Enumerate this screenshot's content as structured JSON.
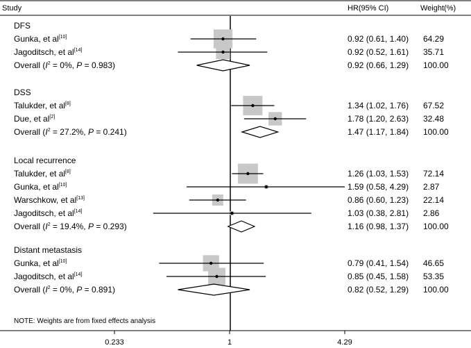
{
  "chart_data": {
    "type": "forest",
    "scale": "log",
    "null_value": 1,
    "columns": {
      "study": "Study",
      "hr": "HR(95% CI)",
      "weight": "Weight(%)"
    },
    "x_ticks": [
      {
        "value": 0.233,
        "label": "0.233"
      },
      {
        "value": 1,
        "label": "1"
      },
      {
        "value": 4.29,
        "label": "4.29"
      }
    ],
    "note": "NOTE: Weights are from fixed effects analysis",
    "groups": [
      {
        "name": "DFS",
        "studies": [
          {
            "author": "Gunka, et al",
            "ref": "[10]",
            "hr": 0.92,
            "lo": 0.61,
            "hi": 1.4,
            "hr_text": "0.92 (0.61, 1.40)",
            "weight": "64.29",
            "w": 64.29
          },
          {
            "author": "Jagoditsch, et al",
            "ref": "[14]",
            "hr": 0.92,
            "lo": 0.52,
            "hi": 1.61,
            "hr_text": "0.92 (0.52, 1.61)",
            "weight": "35.71",
            "w": 35.71
          }
        ],
        "overall": {
          "label": "Overall (",
          "i2_sym": "I",
          "i2_sup": "2",
          "i2_val": " = 0%, ",
          "p_sym": "P",
          "p_val": " = 0.983)",
          "hr": 0.92,
          "lo": 0.66,
          "hi": 1.29,
          "hr_text": "0.92 (0.66, 1.29)",
          "weight": "100.00"
        }
      },
      {
        "name": "DSS",
        "studies": [
          {
            "author": "Talukder, et al",
            "ref": "[8]",
            "hr": 1.34,
            "lo": 1.02,
            "hi": 1.76,
            "hr_text": "1.34 (1.02, 1.76)",
            "weight": "67.52",
            "w": 67.52
          },
          {
            "author": "Due, et al",
            "ref": "[2]",
            "hr": 1.78,
            "lo": 1.2,
            "hi": 2.63,
            "hr_text": "1.78 (1.20, 2.63)",
            "weight": "32.48",
            "w": 32.48
          }
        ],
        "overall": {
          "label": "Overall (",
          "i2_sym": "I",
          "i2_sup": "2",
          "i2_val": " = 27.2%, ",
          "p_sym": "P",
          "p_val": " = 0.241)",
          "hr": 1.47,
          "lo": 1.17,
          "hi": 1.84,
          "hr_text": "1.47 (1.17, 1.84)",
          "weight": "100.00"
        }
      },
      {
        "name": "Local  recurrence",
        "studies": [
          {
            "author": "Talukder, et al",
            "ref": "[8]",
            "hr": 1.26,
            "lo": 1.03,
            "hi": 1.53,
            "hr_text": "1.26 (1.03, 1.53)",
            "weight": "72.14",
            "w": 72.14
          },
          {
            "author": "Gunka, et al",
            "ref": "[10]",
            "hr": 1.59,
            "lo": 0.58,
            "hi": 4.29,
            "hr_text": "1.59 (0.58, 4.29)",
            "weight": "2.87",
            "w": 2.87
          },
          {
            "author": "Warschkow, et al",
            "ref": "[13]",
            "hr": 0.86,
            "lo": 0.6,
            "hi": 1.23,
            "hr_text": "0.86 (0.60, 1.23)",
            "weight": "22.14",
            "w": 22.14
          },
          {
            "author": "Jagoditsch, et al",
            "ref": "[14]",
            "hr": 1.03,
            "lo": 0.38,
            "hi": 2.81,
            "hr_text": "1.03 (0.38, 2.81)",
            "weight": "2.86",
            "w": 2.86
          }
        ],
        "overall": {
          "label": "Overall (",
          "i2_sym": "I",
          "i2_sup": "2",
          "i2_val": " = 19.4%, ",
          "p_sym": "P",
          "p_val": " = 0.293)",
          "hr": 1.16,
          "lo": 0.98,
          "hi": 1.37,
          "hr_text": "1.16 (0.98, 1.37)",
          "weight": "100.00"
        }
      },
      {
        "name": "Distant metastasis",
        "studies": [
          {
            "author": "Gunka, et al",
            "ref": "[10]",
            "hr": 0.79,
            "lo": 0.41,
            "hi": 1.54,
            "hr_text": "0.79 (0.41, 1.54)",
            "weight": "46.65",
            "w": 46.65
          },
          {
            "author": "Jagoditsch, et al",
            "ref": "[14]",
            "hr": 0.85,
            "lo": 0.45,
            "hi": 1.58,
            "hr_text": "0.85 (0.45, 1.58)",
            "weight": "53.35",
            "w": 53.35
          }
        ],
        "overall": {
          "label": "Overall (",
          "i2_sym": "I",
          "i2_sup": "2",
          "i2_val": " = 0%, ",
          "p_sym": "P",
          "p_val": " = 0.891)",
          "hr": 0.82,
          "lo": 0.52,
          "hi": 1.29,
          "hr_text": "0.82 (0.52, 1.29)",
          "weight": "100.00"
        }
      }
    ]
  }
}
